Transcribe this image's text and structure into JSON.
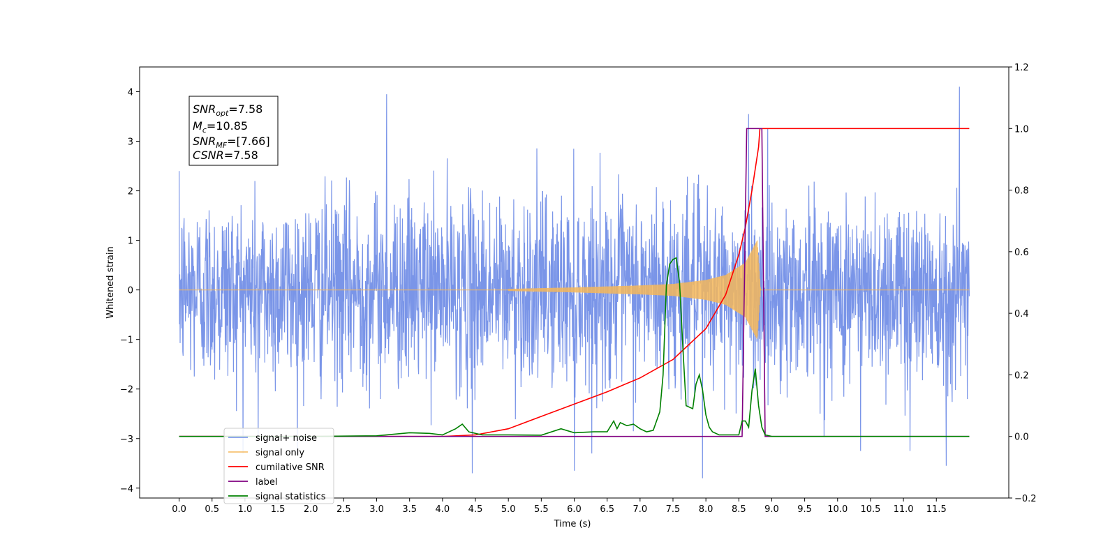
{
  "chart_data": {
    "type": "line",
    "xlabel": "Time (s)",
    "ylabel": "Whitened strain",
    "xlim": [
      -0.6,
      12.6
    ],
    "ylim": [
      -4.2,
      4.5
    ],
    "ylim_right": [
      -0.2,
      1.2
    ],
    "x_ticks": [
      "0.0",
      "0.5",
      "1.0",
      "1.5",
      "2.0",
      "2.5",
      "3.0",
      "3.5",
      "4.0",
      "4.5",
      "5.0",
      "5.5",
      "6.0",
      "6.5",
      "7.0",
      "7.5",
      "8.0",
      "8.5",
      "9.0",
      "9.5",
      "10.0",
      "10.5",
      "11.0",
      "11.5"
    ],
    "y_ticks_left": [
      "−4",
      "−3",
      "−2",
      "−1",
      "0",
      "1",
      "2",
      "3",
      "4"
    ],
    "y_ticks_right": [
      "−0.2",
      "0.0",
      "0.2",
      "0.4",
      "0.6",
      "0.8",
      "1.0",
      "1.2"
    ],
    "legend_placement": "lower-left",
    "annotation": {
      "snr_opt": "SNR_opt=7.58",
      "mc": "M_c=10.85",
      "snr_mf": "SNR_MF=[7.66]",
      "csnr": "CSNR=7.58"
    },
    "series": [
      {
        "name": "signal+ noise",
        "color": "#6b8ae6",
        "axis": "left",
        "kind": "noise",
        "x_range": [
          0.0,
          12.0
        ],
        "noise_sigma": 0.95,
        "spike_peaks": [
          [
            0.0,
            2.4
          ],
          [
            1.2,
            -3.0
          ],
          [
            3.15,
            3.95
          ],
          [
            4.45,
            -3.7
          ],
          [
            6.0,
            -3.65
          ],
          [
            7.95,
            -3.8
          ],
          [
            8.65,
            3.55
          ],
          [
            10.35,
            -3.25
          ],
          [
            11.1,
            -3.25
          ],
          [
            11.65,
            -3.55
          ],
          [
            11.85,
            4.1
          ]
        ]
      },
      {
        "name": "signal only",
        "color": "#f5b75b",
        "axis": "left",
        "kind": "chirp",
        "t_merger": 8.8,
        "amp_envelope": [
          [
            5.0,
            0.02
          ],
          [
            6.0,
            0.05
          ],
          [
            7.0,
            0.09
          ],
          [
            7.5,
            0.12
          ],
          [
            8.0,
            0.2
          ],
          [
            8.3,
            0.3
          ],
          [
            8.6,
            0.55
          ],
          [
            8.78,
            1.0
          ],
          [
            8.83,
            0.0
          ]
        ]
      },
      {
        "name": "cumilative SNR",
        "color": "#ff0000",
        "axis": "right",
        "x": [
          0,
          3.0,
          4.0,
          4.5,
          5.0,
          5.5,
          6.0,
          6.5,
          7.0,
          7.5,
          8.0,
          8.3,
          8.5,
          8.6,
          8.7,
          8.8,
          8.82,
          8.9,
          12.0
        ],
        "values": [
          0,
          0,
          0,
          0.005,
          0.025,
          0.065,
          0.105,
          0.145,
          0.19,
          0.25,
          0.35,
          0.46,
          0.59,
          0.68,
          0.8,
          0.94,
          1.0,
          1.0,
          1.0
        ]
      },
      {
        "name": "label",
        "color": "#800080",
        "axis": "right",
        "x": [
          0,
          8.55,
          8.62,
          8.85,
          8.9,
          12.0
        ],
        "values": [
          0,
          0,
          1.0,
          1.0,
          0,
          0
        ]
      },
      {
        "name": "signal statistics",
        "color": "#008000",
        "axis": "right",
        "x": [
          0,
          2.0,
          3.0,
          3.5,
          3.8,
          4.0,
          4.2,
          4.3,
          4.4,
          4.6,
          5.0,
          5.5,
          5.8,
          6.0,
          6.3,
          6.5,
          6.6,
          6.65,
          6.7,
          6.8,
          6.9,
          7.0,
          7.1,
          7.2,
          7.3,
          7.35,
          7.4,
          7.45,
          7.5,
          7.55,
          7.6,
          7.65,
          7.7,
          7.8,
          7.85,
          7.9,
          7.95,
          8.0,
          8.05,
          8.1,
          8.2,
          8.3,
          8.5,
          8.55,
          8.6,
          8.65,
          8.7,
          8.75,
          8.8,
          8.85,
          8.9,
          9.0,
          12.0
        ],
        "values": [
          0,
          0,
          0.002,
          0.012,
          0.01,
          0.005,
          0.025,
          0.04,
          0.015,
          0.005,
          0.005,
          0.004,
          0.025,
          0.012,
          0.015,
          0.015,
          0.05,
          0.025,
          0.045,
          0.035,
          0.04,
          0.025,
          0.015,
          0.02,
          0.08,
          0.2,
          0.49,
          0.56,
          0.575,
          0.58,
          0.5,
          0.29,
          0.1,
          0.09,
          0.17,
          0.2,
          0.15,
          0.07,
          0.03,
          0.015,
          0.005,
          0.005,
          0.005,
          0.05,
          0.05,
          0.03,
          0.15,
          0.22,
          0.1,
          0.03,
          0.005,
          0.0,
          0.0
        ]
      }
    ]
  }
}
